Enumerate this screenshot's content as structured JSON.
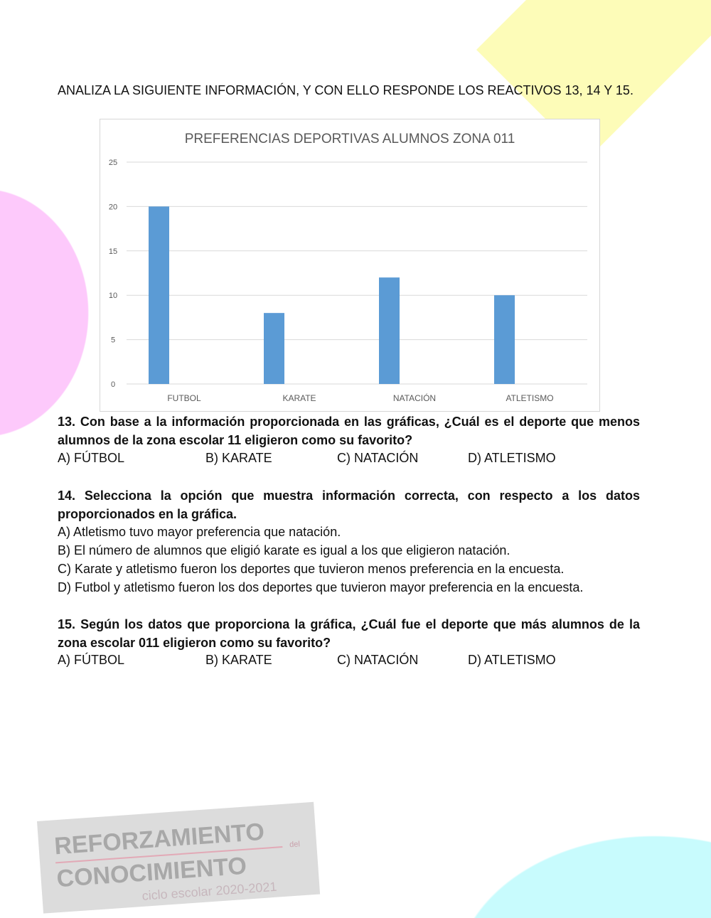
{
  "intro": "ANALIZA LA SIGUIENTE INFORMACIÓN, Y CON ELLO RESPONDE LOS REACTIVOS 13, 14 Y 15.",
  "chart_data": {
    "type": "bar",
    "title": "PREFERENCIAS DEPORTIVAS ALUMNOS ZONA 011",
    "categories": [
      "FUTBOL",
      "KARATE",
      "NATACIÓN",
      "ATLETISMO"
    ],
    "values": [
      20,
      8,
      12,
      10
    ],
    "yticks": [
      "0",
      "5",
      "10",
      "15",
      "20",
      "25"
    ],
    "ylim": [
      0,
      25
    ],
    "grid": true,
    "bar_color": "#5b9bd5"
  },
  "q13": {
    "question": "13. Con base a la información proporcionada en las gráficas, ¿Cuál es el deporte que menos alumnos de la zona escolar 11 eligieron como su favorito?",
    "options": [
      "A) FÚTBOL",
      "B) KARATE",
      "C) NATACIÓN",
      "D) ATLETISMO"
    ]
  },
  "q14": {
    "question": "14. Selecciona la opción que muestra información correcta, con respecto a los datos proporcionados en la gráfica.",
    "options": [
      "A) Atletismo tuvo mayor preferencia que natación.",
      "B) El número de alumnos que eligió karate es igual a los que eligieron natación.",
      "C) Karate y atletismo fueron los deportes que tuvieron menos preferencia en la encuesta.",
      "D) Futbol y atletismo fueron los dos deportes que tuvieron mayor preferencia en la encuesta."
    ]
  },
  "q15": {
    "question": "15. Según los datos que proporciona la gráfica, ¿Cuál fue el deporte que más alumnos de la zona escolar 011 eligieron como su favorito?",
    "options": [
      "A) FÚTBOL",
      "B) KARATE",
      "C) NATACIÓN",
      "D) ATLETISMO"
    ]
  },
  "logo": {
    "line1": "REFORZAMIENTO",
    "del": "del",
    "line2": "CONOCIMIENTO",
    "line3": "ciclo escolar 2020-2021"
  },
  "colors": {
    "yellow": "#fdfcb8",
    "pink": "#fdc9fb",
    "cyan": "#c8fbfd"
  }
}
